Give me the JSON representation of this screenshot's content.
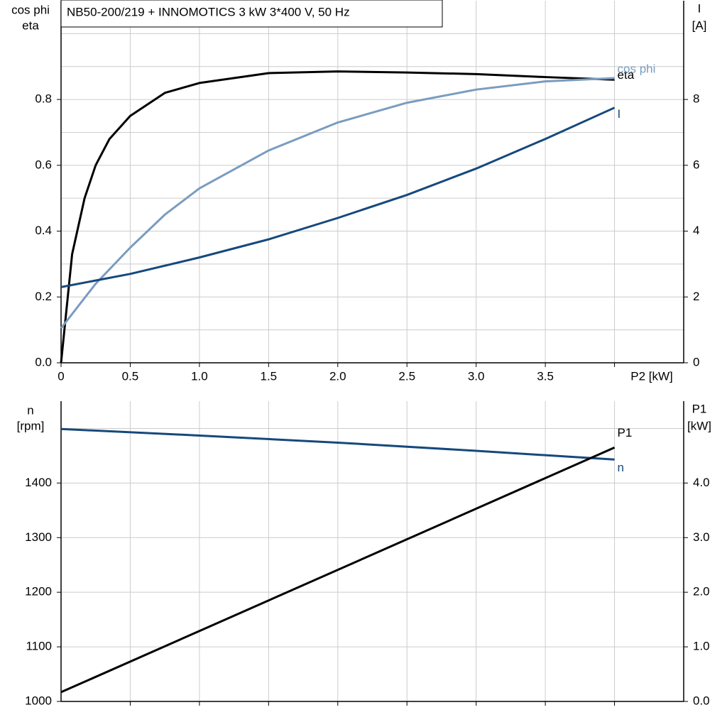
{
  "chart_data": [
    {
      "type": "line",
      "title": "NB50-200/219 + INNOMOTICS   3 kW   3*400 V, 50 Hz",
      "ylabel": [
        "cos phi",
        "eta"
      ],
      "y2label": [
        "I",
        "[A]"
      ],
      "xlabel": "P2 [kW]",
      "xlim": [
        0,
        4.5
      ],
      "ylim": [
        0,
        1.1
      ],
      "y2lim": [
        0,
        11
      ],
      "xticks": [
        0,
        0.5,
        {
          "value": 1,
          "label": "1.0"
        },
        1.5,
        {
          "value": 2,
          "label": "2.0"
        },
        2.5,
        {
          "value": 3,
          "label": "3.0"
        },
        3.5,
        {
          "value": 4,
          "label": null
        }
      ],
      "yticks": [
        {
          "value": 0,
          "label": "0.0"
        },
        0.2,
        0.4,
        0.6,
        0.8
      ],
      "y2ticks": [
        0,
        2,
        4,
        6,
        8
      ],
      "ygrid": [
        0.1,
        0.2,
        0.3,
        0.4,
        0.5,
        0.6,
        0.7,
        0.8,
        0.9,
        1.0
      ],
      "grid": true,
      "series": [
        {
          "name": "eta",
          "color": "#000000",
          "x": [
            0,
            0.08,
            0.17,
            0.25,
            0.35,
            0.5,
            0.75,
            1.0,
            1.5,
            2.0,
            2.5,
            3.0,
            3.5,
            4.0
          ],
          "values": [
            0,
            0.33,
            0.5,
            0.6,
            0.68,
            0.75,
            0.82,
            0.85,
            0.88,
            0.885,
            0.882,
            0.877,
            0.868,
            0.86
          ]
        },
        {
          "name": "cos phi",
          "color": "#7a9cc0",
          "x": [
            0,
            0.25,
            0.5,
            0.75,
            1.0,
            1.5,
            2.0,
            2.5,
            3.0,
            3.5,
            4.0
          ],
          "values": [
            0.105,
            0.24,
            0.35,
            0.45,
            0.53,
            0.645,
            0.73,
            0.79,
            0.83,
            0.855,
            0.865
          ]
        },
        {
          "name": "I",
          "color": "#15497c",
          "axis": "y2",
          "x": [
            0,
            0.5,
            1.0,
            1.5,
            2.0,
            2.5,
            3.0,
            3.5,
            4.0
          ],
          "values": [
            2.3,
            2.7,
            3.2,
            3.75,
            4.4,
            5.1,
            5.9,
            6.8,
            7.75
          ]
        }
      ]
    },
    {
      "type": "line",
      "ylabel": [
        "n",
        "[rpm]"
      ],
      "y2label": [
        "P1",
        "[kW]"
      ],
      "xlim": [
        0,
        4.5
      ],
      "ylim": [
        1000,
        1550
      ],
      "y2lim": [
        0,
        5.5
      ],
      "xticks": [
        0.5,
        1,
        1.5,
        2,
        2.5,
        3,
        3.5,
        4
      ],
      "show_xtick_labels": false,
      "yticks": [
        1000,
        1100,
        1200,
        1300,
        1400
      ],
      "y2ticks": [
        {
          "value": 0,
          "label": "0.0"
        },
        {
          "value": 1,
          "label": "1.0"
        },
        {
          "value": 2,
          "label": "2.0"
        },
        {
          "value": 3,
          "label": "3.0"
        },
        {
          "value": 4,
          "label": "4.0"
        }
      ],
      "ygrid": [
        1100,
        1200,
        1300,
        1400,
        1500
      ],
      "grid": true,
      "series": [
        {
          "name": "n",
          "color": "#15497c",
          "x": [
            0,
            1,
            2,
            3,
            4
          ],
          "values": [
            1499,
            1487,
            1474,
            1459,
            1443
          ]
        },
        {
          "name": "P1",
          "color": "#000000",
          "axis": "y2",
          "x": [
            0,
            4
          ],
          "values": [
            0.17,
            4.65
          ]
        }
      ]
    }
  ]
}
